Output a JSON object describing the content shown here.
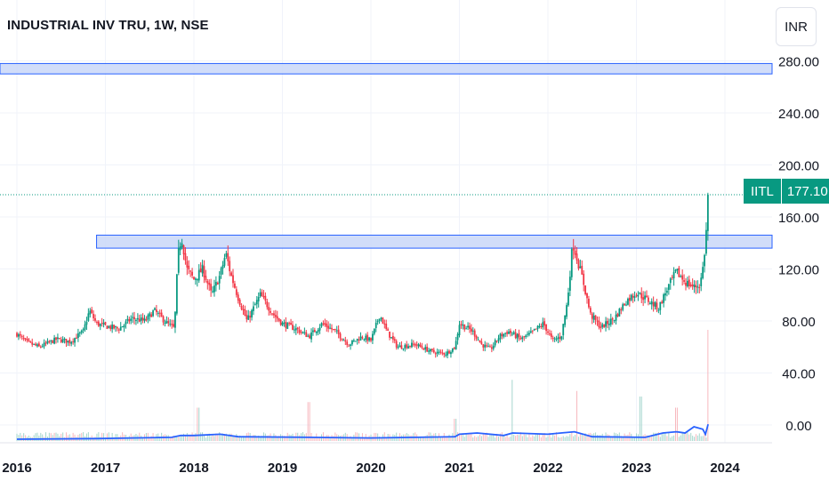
{
  "header": {
    "title": "INDUSTRIAL INV TRU, 1W, NSE",
    "currency": "INR"
  },
  "price_label": {
    "symbol": "IITL",
    "value": "177.10"
  },
  "colors": {
    "up": "#089981",
    "down": "#f23645",
    "zone_fill": "#c9d7f8",
    "zone_stroke": "#2962ff",
    "obv_line": "#2962ff",
    "grid": "#f0f3fa",
    "axis_text": "#131722"
  },
  "chart_data": {
    "type": "candlestick",
    "title": "INDUSTRIAL INV TRU, 1W, NSE",
    "currency": "INR",
    "y_axis": {
      "ticks": [
        0,
        40,
        80,
        120,
        160,
        200,
        240,
        280
      ],
      "tick_labels": [
        "0.00",
        "40.00",
        "80.00",
        "120.00",
        "160.00",
        "200.00",
        "240.00",
        "280.00"
      ],
      "range": [
        -12,
        292
      ],
      "position": "right"
    },
    "x_axis": {
      "ticks": [
        2016,
        2017,
        2018,
        2019,
        2020,
        2021,
        2022,
        2023,
        2024
      ],
      "tick_labels": [
        "2016",
        "2017",
        "2018",
        "2019",
        "2020",
        "2021",
        "2022",
        "2023",
        "2024"
      ],
      "range": [
        2016.0,
        2024.5
      ]
    },
    "last_price": 177.1,
    "price_path": [
      [
        2016.0,
        70
      ],
      [
        2016.1,
        64
      ],
      [
        2016.25,
        60
      ],
      [
        2016.45,
        66
      ],
      [
        2016.6,
        64
      ],
      [
        2016.75,
        72
      ],
      [
        2016.82,
        88
      ],
      [
        2016.9,
        78
      ],
      [
        2017.0,
        76
      ],
      [
        2017.15,
        74
      ],
      [
        2017.3,
        82
      ],
      [
        2017.45,
        80
      ],
      [
        2017.55,
        88
      ],
      [
        2017.7,
        78
      ],
      [
        2017.78,
        74
      ],
      [
        2017.82,
        130
      ],
      [
        2017.86,
        145
      ],
      [
        2017.92,
        120
      ],
      [
        2018.0,
        112
      ],
      [
        2018.1,
        120
      ],
      [
        2018.2,
        100
      ],
      [
        2018.3,
        116
      ],
      [
        2018.36,
        132
      ],
      [
        2018.42,
        115
      ],
      [
        2018.5,
        98
      ],
      [
        2018.6,
        80
      ],
      [
        2018.75,
        100
      ],
      [
        2018.9,
        85
      ],
      [
        2019.0,
        78
      ],
      [
        2019.15,
        74
      ],
      [
        2019.3,
        68
      ],
      [
        2019.45,
        78
      ],
      [
        2019.6,
        72
      ],
      [
        2019.75,
        62
      ],
      [
        2019.9,
        68
      ],
      [
        2020.0,
        65
      ],
      [
        2020.1,
        85
      ],
      [
        2020.18,
        72
      ],
      [
        2020.3,
        60
      ],
      [
        2020.5,
        62
      ],
      [
        2020.7,
        56
      ],
      [
        2020.85,
        55
      ],
      [
        2020.95,
        60
      ],
      [
        2021.0,
        78
      ],
      [
        2021.15,
        72
      ],
      [
        2021.25,
        62
      ],
      [
        2021.35,
        58
      ],
      [
        2021.45,
        68
      ],
      [
        2021.55,
        72
      ],
      [
        2021.7,
        66
      ],
      [
        2021.8,
        70
      ],
      [
        2021.95,
        78
      ],
      [
        2022.05,
        65
      ],
      [
        2022.15,
        68
      ],
      [
        2022.22,
        95
      ],
      [
        2022.28,
        140
      ],
      [
        2022.33,
        128
      ],
      [
        2022.4,
        110
      ],
      [
        2022.48,
        85
      ],
      [
        2022.6,
        75
      ],
      [
        2022.75,
        82
      ],
      [
        2022.88,
        95
      ],
      [
        2023.0,
        102
      ],
      [
        2023.15,
        95
      ],
      [
        2023.25,
        90
      ],
      [
        2023.35,
        105
      ],
      [
        2023.45,
        118
      ],
      [
        2023.55,
        110
      ],
      [
        2023.65,
        106
      ],
      [
        2023.72,
        108
      ],
      [
        2023.76,
        125
      ],
      [
        2023.79,
        150
      ],
      [
        2023.81,
        177.1
      ]
    ],
    "support_resistance_zones": [
      {
        "low": 270,
        "high": 278,
        "x_start": 2016.0,
        "x_end": 2024.5
      },
      {
        "low": 136,
        "high": 146,
        "x_start": 2016.9,
        "x_end": 2024.5
      }
    ],
    "volume_spikes": [
      {
        "x": 2018.05,
        "level": 0.3
      },
      {
        "x": 2019.3,
        "level": 0.35
      },
      {
        "x": 2020.95,
        "level": 0.2
      },
      {
        "x": 2021.6,
        "level": 0.55
      },
      {
        "x": 2022.32,
        "level": 0.45
      },
      {
        "x": 2023.05,
        "level": 0.4
      },
      {
        "x": 2023.45,
        "level": 0.3
      },
      {
        "x": 2023.81,
        "level": 1.0
      }
    ],
    "obv_path": [
      [
        2016.0,
        0
      ],
      [
        2016.9,
        0.5
      ],
      [
        2017.75,
        1.5
      ],
      [
        2017.85,
        3
      ],
      [
        2018.0,
        3
      ],
      [
        2018.3,
        4
      ],
      [
        2018.5,
        2
      ],
      [
        2019.3,
        1.5
      ],
      [
        2020.0,
        1
      ],
      [
        2020.95,
        2
      ],
      [
        2021.0,
        4
      ],
      [
        2021.2,
        5
      ],
      [
        2021.5,
        3
      ],
      [
        2021.6,
        5
      ],
      [
        2022.0,
        4
      ],
      [
        2022.3,
        6
      ],
      [
        2022.5,
        2
      ],
      [
        2023.1,
        1.5
      ],
      [
        2023.3,
        5
      ],
      [
        2023.45,
        6
      ],
      [
        2023.55,
        5
      ],
      [
        2023.65,
        10
      ],
      [
        2023.75,
        8
      ],
      [
        2023.78,
        4
      ],
      [
        2023.81,
        12
      ]
    ],
    "grid": true,
    "legend": "none"
  }
}
